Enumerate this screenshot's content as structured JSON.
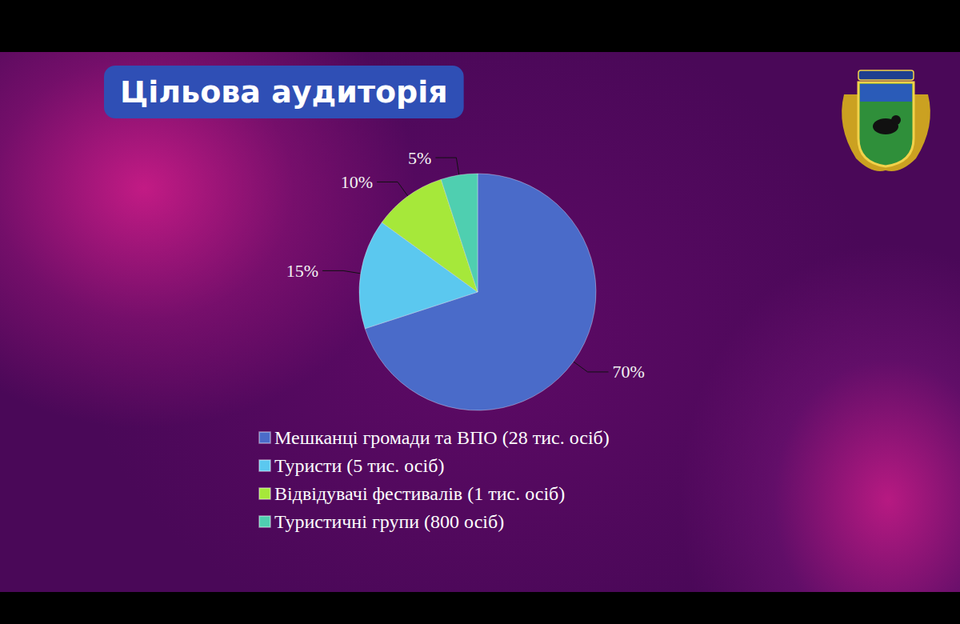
{
  "chart_data": {
    "type": "pie",
    "title": "Цільова аудиторія",
    "categories": [
      "Мешканці громади та ВПО (28 тис. осіб)",
      "Туристи (5 тис. осіб)",
      "Відвідувачі фестивалів (1 тис. осіб)",
      "Туристичні групи (800 осіб)"
    ],
    "values": [
      70,
      15,
      10,
      5
    ],
    "value_labels": [
      "70%",
      "15%",
      "10%",
      "5%"
    ],
    "colors": [
      "#4a6bc9",
      "#5bc8ef",
      "#a6e83a",
      "#4fcfb0"
    ],
    "data_labels": true,
    "legend": "bottom"
  }
}
